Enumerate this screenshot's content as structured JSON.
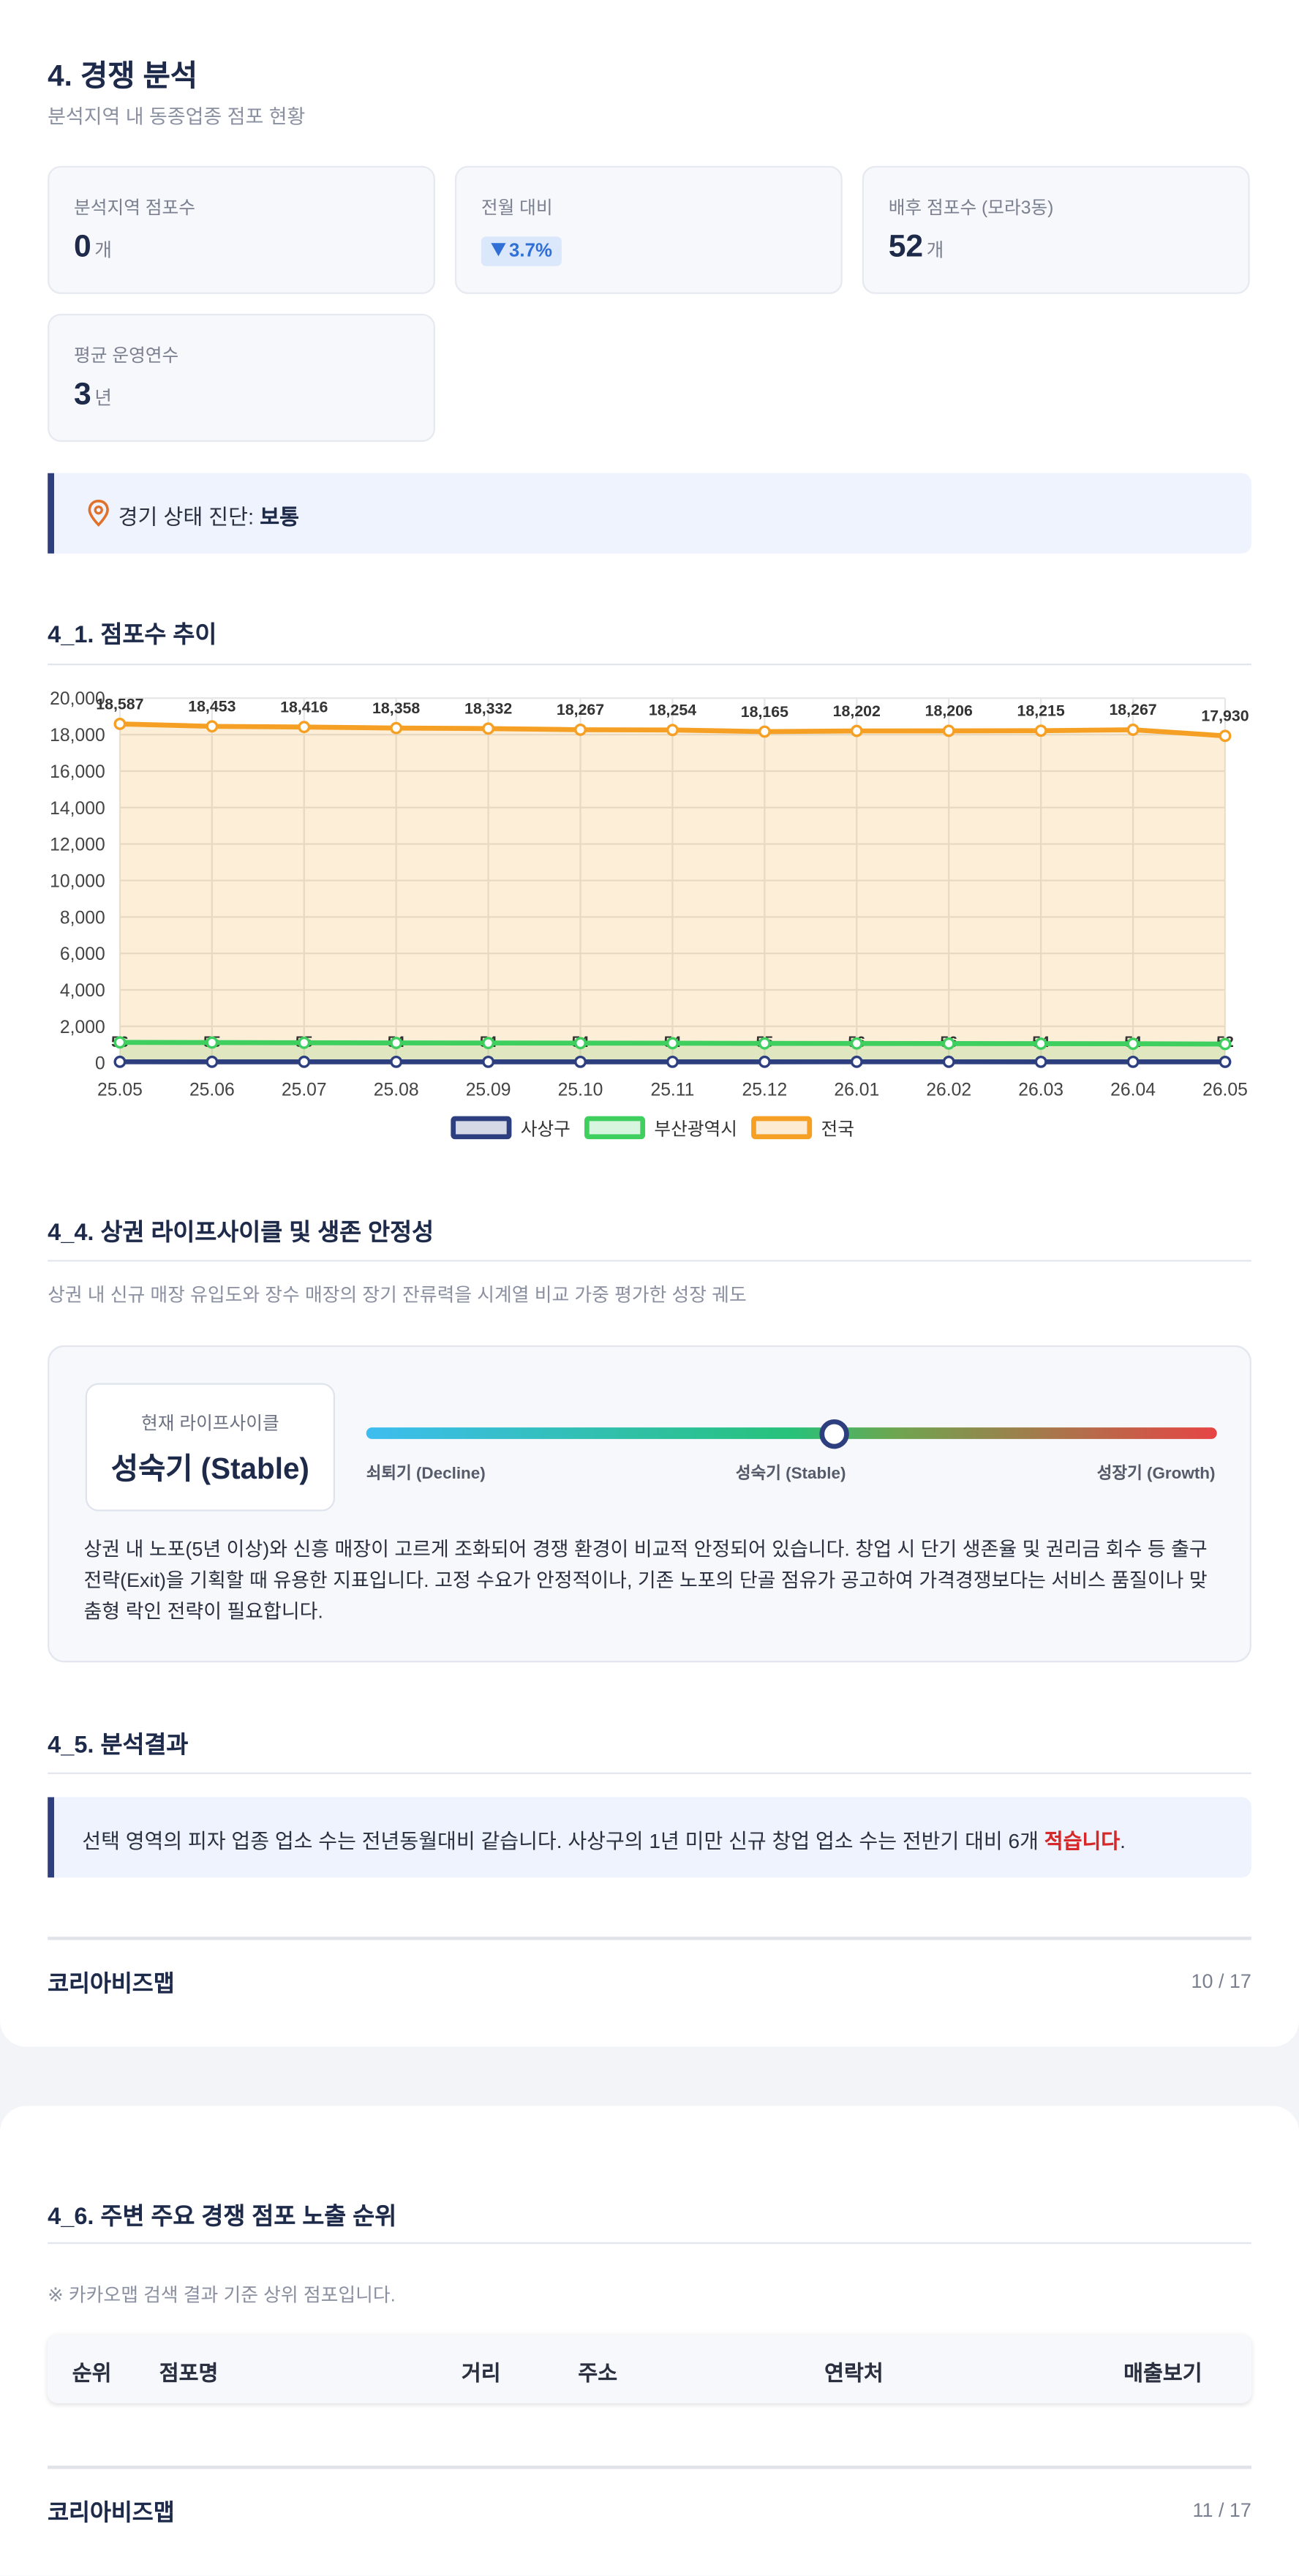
{
  "header": {
    "title": "4. 경쟁 분석",
    "subtitle": "분석지역 내 동종업종 점포 현황"
  },
  "stats": [
    {
      "label": "분석지역 점포수",
      "value": "0",
      "unit": "개"
    },
    {
      "label": "전월 대비",
      "value": "3.7%"
    },
    {
      "label": "배후 점포수 (모라3동)",
      "value": "52",
      "unit": "개"
    },
    {
      "label": "평균 운영연수",
      "value": "3",
      "unit": "년"
    }
  ],
  "diagnosis": {
    "label": "경기 상태 진단:",
    "value": "보통"
  },
  "trend_section": {
    "title": "4_1. 점포수 추이"
  },
  "chart_data": {
    "type": "line",
    "categories": [
      "25.05",
      "25.06",
      "25.07",
      "25.08",
      "25.09",
      "25.10",
      "25.11",
      "25.12",
      "26.01",
      "26.02",
      "26.03",
      "26.04",
      "26.05"
    ],
    "series": [
      {
        "name": "사상구",
        "color": "#2e3f7f",
        "data_labels": true,
        "values": [
          56,
          55,
          55,
          54,
          54,
          54,
          54,
          55,
          56,
          56,
          54,
          54,
          52
        ]
      },
      {
        "name": "부산광역시",
        "color": "#3ecf5f",
        "data_labels": false,
        "values": [
          1120,
          1110,
          1100,
          1090,
          1085,
          1080,
          1075,
          1065,
          1060,
          1055,
          1050,
          1045,
          1030
        ]
      },
      {
        "name": "전국",
        "color": "#f5a024",
        "data_labels": true,
        "values": [
          18587,
          18453,
          18416,
          18358,
          18332,
          18267,
          18254,
          18165,
          18202,
          18206,
          18215,
          18267,
          17930
        ],
        "value_labels": [
          "18,587",
          "18,453",
          "18,416",
          "18,358",
          "18,332",
          "18,267",
          "18,254",
          "18,165",
          "18,202",
          "18,206",
          "18,215",
          "18,267",
          "17,930"
        ]
      }
    ],
    "ylim": [
      0,
      20000
    ],
    "yticks": [
      0,
      {
        "value": 2000,
        "label": "2,000"
      },
      {
        "value": 4000,
        "label": "4,000"
      },
      {
        "value": 6000,
        "label": "6,000"
      },
      {
        "value": 8000,
        "label": "8,000"
      },
      {
        "value": 10000,
        "label": "10,000"
      },
      {
        "value": 12000,
        "label": "12,000"
      },
      {
        "value": 14000,
        "label": "14,000"
      },
      {
        "value": 16000,
        "label": "16,000"
      },
      {
        "value": 18000,
        "label": "18,000"
      },
      {
        "value": 20000,
        "label": "20,000"
      }
    ],
    "grid": true,
    "legend": "bottom"
  },
  "lifecycle": {
    "title": "4_4. 상권 라이프사이클 및 생존 안정성",
    "description": "상권 내 신규 매장 유입도와 장수 매장의 장기 잔류력을 시계열 비교 가중 평가한 성장 궤도",
    "current_label": "현재 라이프사이클",
    "current": "성숙기 (Stable)",
    "scale": [
      "쇠퇴기 (Decline)",
      "성숙기 (Stable)",
      "성장기 (Growth)"
    ],
    "text": "상권 내 노포(5년 이상)와 신흥 매장이 고르게 조화되어 경쟁 환경이 비교적 안정되어 있습니다. 창업 시 단기 생존율 및 권리금 회수 등 출구 전략(Exit)을 기획할 때 유용한 지표입니다. 고정 수요가 안정적이나, 기존 노포의 단골 점유가 공고하여 가격경쟁보다는 서비스 품질이나 맞춤형 락인 전략이 필요합니다."
  },
  "result": {
    "title": "4_5. 분석결과",
    "text": "선택 영역의 피자 업종 업소 수는 전년동월대비 같습니다. 사상구의 1년 미만 신규 창업 업소 수는 전반기 대비 6개",
    "emphasis": "적습니다",
    "end": "."
  },
  "footer_1": {
    "brand": "코리아비즈맵",
    "page": "10 / 17"
  },
  "ranking": {
    "title": "4_6. 주변 주요 경쟁 점포 노출 순위",
    "note": "※ 카카오맵 검색 결과 기준 상위 점포입니다.",
    "columns": [
      "순위",
      "점포명",
      "거리",
      "주소",
      "연락처",
      "매출보기"
    ]
  },
  "footer_2": {
    "brand": "코리아비즈맵",
    "page": "11 / 17"
  }
}
